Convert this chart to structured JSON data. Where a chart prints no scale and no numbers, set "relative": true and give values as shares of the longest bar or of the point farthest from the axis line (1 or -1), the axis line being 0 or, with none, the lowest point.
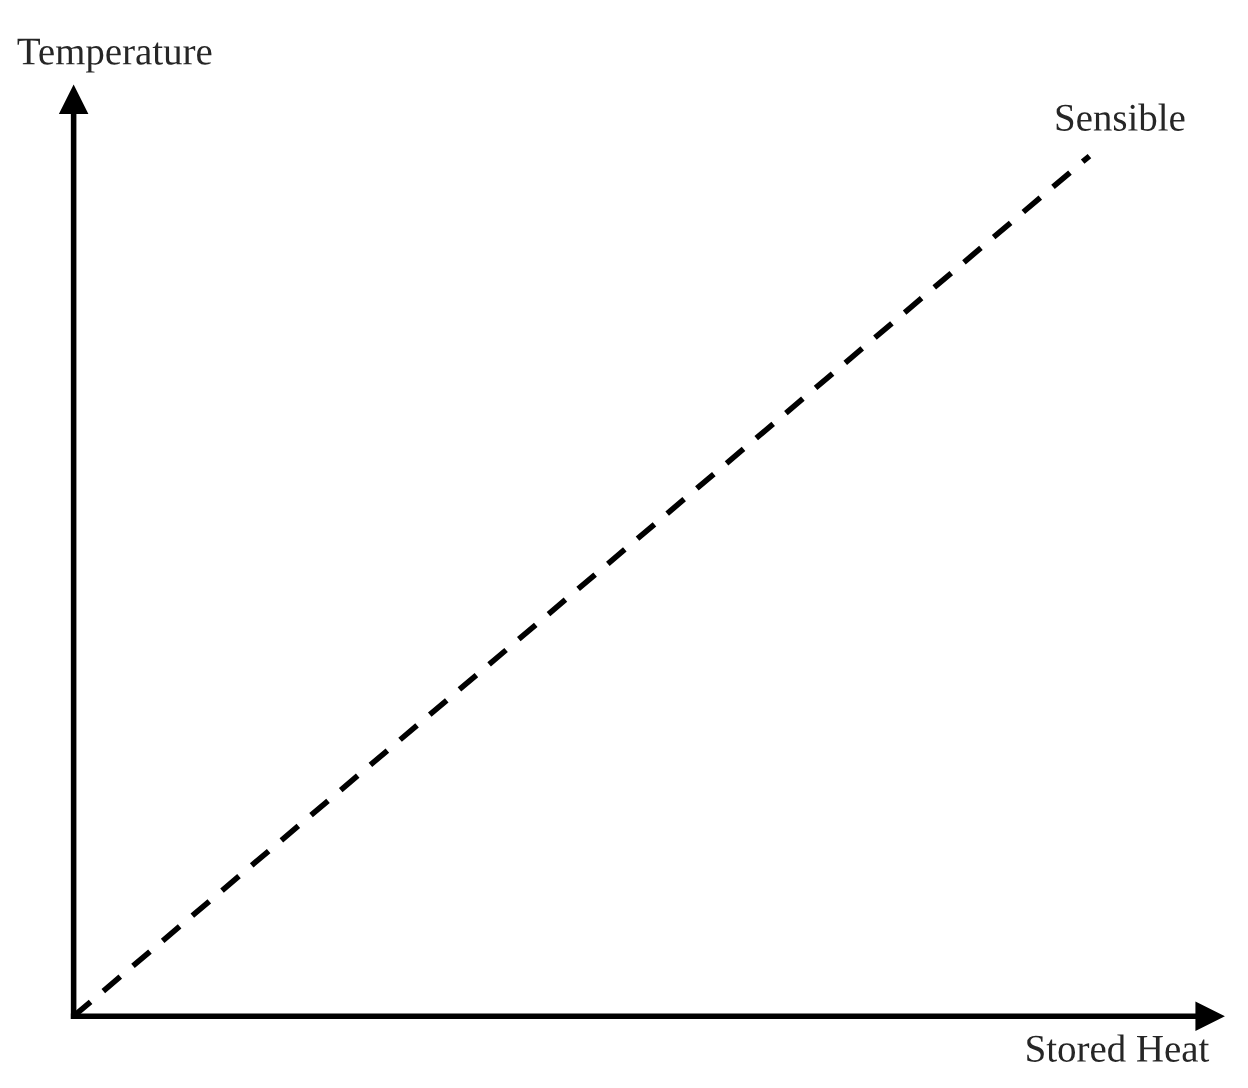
{
  "chart_data": {
    "type": "line",
    "xlabel": "Stored Heat",
    "ylabel": "Temperature",
    "relative": true,
    "categories": [
      null,
      null
    ],
    "series": [
      {
        "name": "Sensible",
        "color": "#000000",
        "values": [
          0,
          1
        ]
      }
    ],
    "line_style": "dashed",
    "marker": "none",
    "legend": false,
    "tick_labels": false
  }
}
